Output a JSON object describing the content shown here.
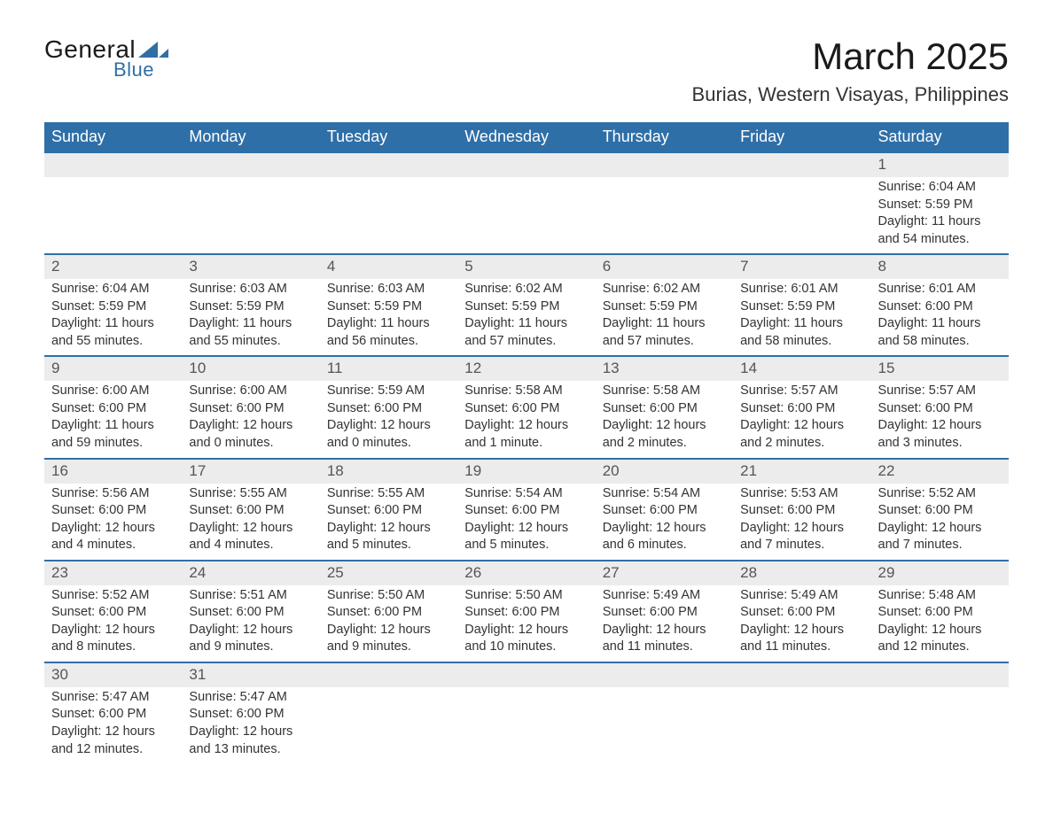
{
  "brand": {
    "general": "General",
    "blue": "Blue",
    "logo_color": "#2f6fa7"
  },
  "header": {
    "month_title": "March 2025",
    "location": "Burias, Western Visayas, Philippines",
    "title_fontsize": 42,
    "location_fontsize": 22
  },
  "calendar": {
    "type": "calendar-table",
    "header_bg": "#2f6fa7",
    "header_text_color": "#ffffff",
    "row_divider_color": "#2f6fa7",
    "daynum_bg": "#ececec",
    "body_text_color": "#333333",
    "body_fontsize": 14.5,
    "days_of_week": [
      "Sunday",
      "Monday",
      "Tuesday",
      "Wednesday",
      "Thursday",
      "Friday",
      "Saturday"
    ],
    "weeks": [
      [
        null,
        null,
        null,
        null,
        null,
        null,
        {
          "n": "1",
          "sunrise": "Sunrise: 6:04 AM",
          "sunset": "Sunset: 5:59 PM",
          "dl1": "Daylight: 11 hours",
          "dl2": "and 54 minutes."
        }
      ],
      [
        {
          "n": "2",
          "sunrise": "Sunrise: 6:04 AM",
          "sunset": "Sunset: 5:59 PM",
          "dl1": "Daylight: 11 hours",
          "dl2": "and 55 minutes."
        },
        {
          "n": "3",
          "sunrise": "Sunrise: 6:03 AM",
          "sunset": "Sunset: 5:59 PM",
          "dl1": "Daylight: 11 hours",
          "dl2": "and 55 minutes."
        },
        {
          "n": "4",
          "sunrise": "Sunrise: 6:03 AM",
          "sunset": "Sunset: 5:59 PM",
          "dl1": "Daylight: 11 hours",
          "dl2": "and 56 minutes."
        },
        {
          "n": "5",
          "sunrise": "Sunrise: 6:02 AM",
          "sunset": "Sunset: 5:59 PM",
          "dl1": "Daylight: 11 hours",
          "dl2": "and 57 minutes."
        },
        {
          "n": "6",
          "sunrise": "Sunrise: 6:02 AM",
          "sunset": "Sunset: 5:59 PM",
          "dl1": "Daylight: 11 hours",
          "dl2": "and 57 minutes."
        },
        {
          "n": "7",
          "sunrise": "Sunrise: 6:01 AM",
          "sunset": "Sunset: 5:59 PM",
          "dl1": "Daylight: 11 hours",
          "dl2": "and 58 minutes."
        },
        {
          "n": "8",
          "sunrise": "Sunrise: 6:01 AM",
          "sunset": "Sunset: 6:00 PM",
          "dl1": "Daylight: 11 hours",
          "dl2": "and 58 minutes."
        }
      ],
      [
        {
          "n": "9",
          "sunrise": "Sunrise: 6:00 AM",
          "sunset": "Sunset: 6:00 PM",
          "dl1": "Daylight: 11 hours",
          "dl2": "and 59 minutes."
        },
        {
          "n": "10",
          "sunrise": "Sunrise: 6:00 AM",
          "sunset": "Sunset: 6:00 PM",
          "dl1": "Daylight: 12 hours",
          "dl2": "and 0 minutes."
        },
        {
          "n": "11",
          "sunrise": "Sunrise: 5:59 AM",
          "sunset": "Sunset: 6:00 PM",
          "dl1": "Daylight: 12 hours",
          "dl2": "and 0 minutes."
        },
        {
          "n": "12",
          "sunrise": "Sunrise: 5:58 AM",
          "sunset": "Sunset: 6:00 PM",
          "dl1": "Daylight: 12 hours",
          "dl2": "and 1 minute."
        },
        {
          "n": "13",
          "sunrise": "Sunrise: 5:58 AM",
          "sunset": "Sunset: 6:00 PM",
          "dl1": "Daylight: 12 hours",
          "dl2": "and 2 minutes."
        },
        {
          "n": "14",
          "sunrise": "Sunrise: 5:57 AM",
          "sunset": "Sunset: 6:00 PM",
          "dl1": "Daylight: 12 hours",
          "dl2": "and 2 minutes."
        },
        {
          "n": "15",
          "sunrise": "Sunrise: 5:57 AM",
          "sunset": "Sunset: 6:00 PM",
          "dl1": "Daylight: 12 hours",
          "dl2": "and 3 minutes."
        }
      ],
      [
        {
          "n": "16",
          "sunrise": "Sunrise: 5:56 AM",
          "sunset": "Sunset: 6:00 PM",
          "dl1": "Daylight: 12 hours",
          "dl2": "and 4 minutes."
        },
        {
          "n": "17",
          "sunrise": "Sunrise: 5:55 AM",
          "sunset": "Sunset: 6:00 PM",
          "dl1": "Daylight: 12 hours",
          "dl2": "and 4 minutes."
        },
        {
          "n": "18",
          "sunrise": "Sunrise: 5:55 AM",
          "sunset": "Sunset: 6:00 PM",
          "dl1": "Daylight: 12 hours",
          "dl2": "and 5 minutes."
        },
        {
          "n": "19",
          "sunrise": "Sunrise: 5:54 AM",
          "sunset": "Sunset: 6:00 PM",
          "dl1": "Daylight: 12 hours",
          "dl2": "and 5 minutes."
        },
        {
          "n": "20",
          "sunrise": "Sunrise: 5:54 AM",
          "sunset": "Sunset: 6:00 PM",
          "dl1": "Daylight: 12 hours",
          "dl2": "and 6 minutes."
        },
        {
          "n": "21",
          "sunrise": "Sunrise: 5:53 AM",
          "sunset": "Sunset: 6:00 PM",
          "dl1": "Daylight: 12 hours",
          "dl2": "and 7 minutes."
        },
        {
          "n": "22",
          "sunrise": "Sunrise: 5:52 AM",
          "sunset": "Sunset: 6:00 PM",
          "dl1": "Daylight: 12 hours",
          "dl2": "and 7 minutes."
        }
      ],
      [
        {
          "n": "23",
          "sunrise": "Sunrise: 5:52 AM",
          "sunset": "Sunset: 6:00 PM",
          "dl1": "Daylight: 12 hours",
          "dl2": "and 8 minutes."
        },
        {
          "n": "24",
          "sunrise": "Sunrise: 5:51 AM",
          "sunset": "Sunset: 6:00 PM",
          "dl1": "Daylight: 12 hours",
          "dl2": "and 9 minutes."
        },
        {
          "n": "25",
          "sunrise": "Sunrise: 5:50 AM",
          "sunset": "Sunset: 6:00 PM",
          "dl1": "Daylight: 12 hours",
          "dl2": "and 9 minutes."
        },
        {
          "n": "26",
          "sunrise": "Sunrise: 5:50 AM",
          "sunset": "Sunset: 6:00 PM",
          "dl1": "Daylight: 12 hours",
          "dl2": "and 10 minutes."
        },
        {
          "n": "27",
          "sunrise": "Sunrise: 5:49 AM",
          "sunset": "Sunset: 6:00 PM",
          "dl1": "Daylight: 12 hours",
          "dl2": "and 11 minutes."
        },
        {
          "n": "28",
          "sunrise": "Sunrise: 5:49 AM",
          "sunset": "Sunset: 6:00 PM",
          "dl1": "Daylight: 12 hours",
          "dl2": "and 11 minutes."
        },
        {
          "n": "29",
          "sunrise": "Sunrise: 5:48 AM",
          "sunset": "Sunset: 6:00 PM",
          "dl1": "Daylight: 12 hours",
          "dl2": "and 12 minutes."
        }
      ],
      [
        {
          "n": "30",
          "sunrise": "Sunrise: 5:47 AM",
          "sunset": "Sunset: 6:00 PM",
          "dl1": "Daylight: 12 hours",
          "dl2": "and 12 minutes."
        },
        {
          "n": "31",
          "sunrise": "Sunrise: 5:47 AM",
          "sunset": "Sunset: 6:00 PM",
          "dl1": "Daylight: 12 hours",
          "dl2": "and 13 minutes."
        },
        null,
        null,
        null,
        null,
        null
      ]
    ]
  }
}
